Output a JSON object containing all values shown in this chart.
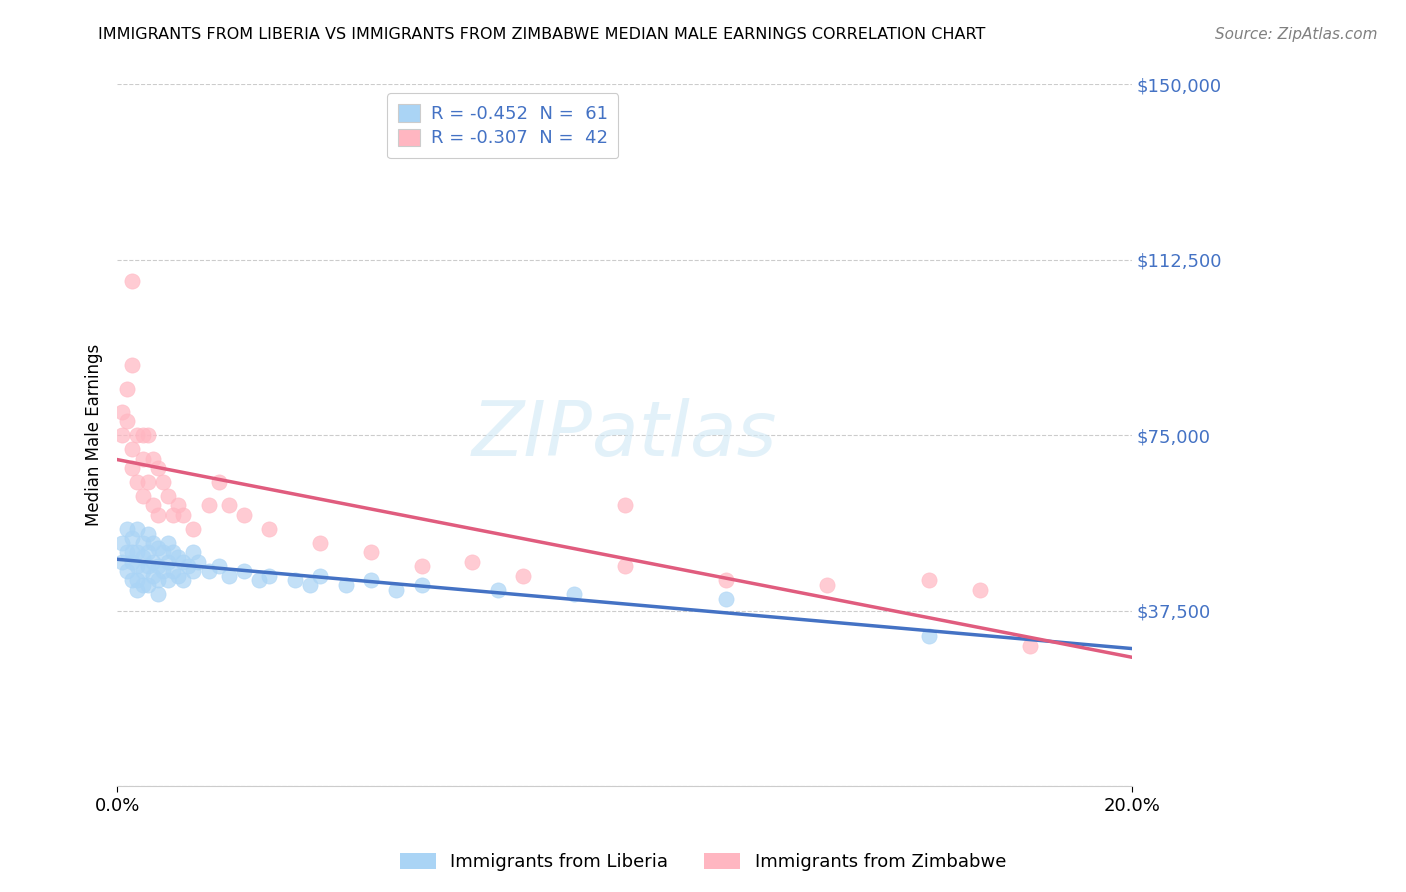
{
  "title": "IMMIGRANTS FROM LIBERIA VS IMMIGRANTS FROM ZIMBABWE MEDIAN MALE EARNINGS CORRELATION CHART",
  "source": "Source: ZipAtlas.com",
  "ylabel": "Median Male Earnings",
  "xlim": [
    0.0,
    0.2
  ],
  "ylim": [
    0,
    150000
  ],
  "yticks": [
    0,
    37500,
    75000,
    112500,
    150000
  ],
  "ytick_labels": [
    "",
    "$37,500",
    "$75,000",
    "$112,500",
    "$150,000"
  ],
  "xtick_labels": [
    "0.0%",
    "20.0%"
  ],
  "watermark": "ZIPatlas",
  "liberia_color": "#aad4f5",
  "zimbabwe_color": "#ffb6c1",
  "liberia_line_color": "#4472c4",
  "zimbabwe_line_color": "#e05c7e",
  "axis_color": "#4472c4",
  "r_liberia": "-0.452",
  "n_liberia": "61",
  "r_zimbabwe": "-0.307",
  "n_zimbabwe": "42",
  "legend_label_liberia": "Immigrants from Liberia",
  "legend_label_zimbabwe": "Immigrants from Zimbabwe",
  "liberia_x": [
    0.001,
    0.001,
    0.002,
    0.002,
    0.002,
    0.003,
    0.003,
    0.003,
    0.003,
    0.004,
    0.004,
    0.004,
    0.004,
    0.004,
    0.005,
    0.005,
    0.005,
    0.005,
    0.006,
    0.006,
    0.006,
    0.006,
    0.007,
    0.007,
    0.007,
    0.008,
    0.008,
    0.008,
    0.008,
    0.009,
    0.009,
    0.01,
    0.01,
    0.01,
    0.011,
    0.011,
    0.012,
    0.012,
    0.013,
    0.013,
    0.014,
    0.015,
    0.015,
    0.016,
    0.018,
    0.02,
    0.022,
    0.025,
    0.028,
    0.03,
    0.035,
    0.038,
    0.04,
    0.045,
    0.05,
    0.055,
    0.06,
    0.075,
    0.09,
    0.12,
    0.16
  ],
  "liberia_y": [
    52000,
    48000,
    55000,
    50000,
    46000,
    53000,
    50000,
    48000,
    44000,
    55000,
    50000,
    47000,
    44000,
    42000,
    52000,
    49000,
    46000,
    43000,
    54000,
    50000,
    47000,
    43000,
    52000,
    48000,
    45000,
    51000,
    47000,
    44000,
    41000,
    50000,
    46000,
    52000,
    48000,
    44000,
    50000,
    46000,
    49000,
    45000,
    48000,
    44000,
    47000,
    50000,
    46000,
    48000,
    46000,
    47000,
    45000,
    46000,
    44000,
    45000,
    44000,
    43000,
    45000,
    43000,
    44000,
    42000,
    43000,
    42000,
    41000,
    40000,
    32000
  ],
  "zimbabwe_x": [
    0.001,
    0.001,
    0.002,
    0.002,
    0.003,
    0.003,
    0.003,
    0.004,
    0.004,
    0.005,
    0.005,
    0.006,
    0.006,
    0.007,
    0.007,
    0.008,
    0.008,
    0.009,
    0.01,
    0.011,
    0.012,
    0.013,
    0.015,
    0.018,
    0.02,
    0.025,
    0.03,
    0.04,
    0.05,
    0.06,
    0.07,
    0.08,
    0.1,
    0.12,
    0.14,
    0.16,
    0.17,
    0.18,
    0.003,
    0.005,
    0.022,
    0.1
  ],
  "zimbabwe_y": [
    80000,
    75000,
    85000,
    78000,
    90000,
    72000,
    68000,
    75000,
    65000,
    70000,
    62000,
    75000,
    65000,
    70000,
    60000,
    68000,
    58000,
    65000,
    62000,
    58000,
    60000,
    58000,
    55000,
    60000,
    65000,
    58000,
    55000,
    52000,
    50000,
    47000,
    48000,
    45000,
    47000,
    44000,
    43000,
    44000,
    42000,
    30000,
    108000,
    75000,
    60000,
    60000
  ]
}
